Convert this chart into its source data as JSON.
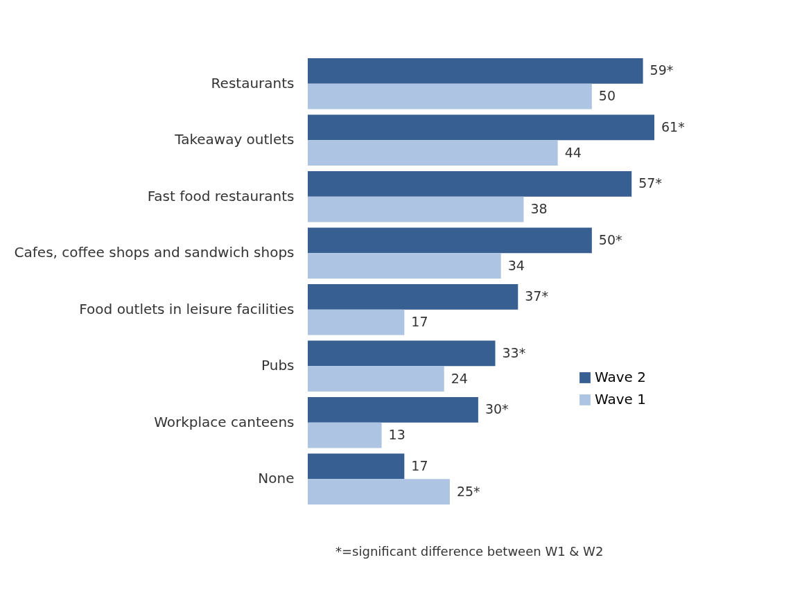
{
  "chart_data": {
    "type": "bar",
    "orientation": "horizontal",
    "categories": [
      "Restaurants",
      "Takeaway outlets",
      "Fast food restaurants",
      "Cafes, coffee shops and sandwich shops",
      "Food outlets in leisure facilities",
      "Pubs",
      "Workplace canteens",
      "None"
    ],
    "series": [
      {
        "name": "Wave 2",
        "color": "#375f91",
        "values": [
          59,
          61,
          57,
          50,
          37,
          33,
          30,
          17
        ],
        "value_labels": [
          "59*",
          "61*",
          "57*",
          "50*",
          "37*",
          "33*",
          "30*",
          "17"
        ]
      },
      {
        "name": "Wave 1",
        "color": "#adc4e2",
        "values": [
          50,
          44,
          38,
          34,
          17,
          24,
          13,
          25
        ],
        "value_labels": [
          "50",
          "44",
          "38",
          "34",
          "17",
          "24",
          "13",
          "25*"
        ]
      }
    ],
    "legend": "right",
    "grid": false,
    "annotations": [
      "*=significant difference between W1 & W2"
    ]
  }
}
